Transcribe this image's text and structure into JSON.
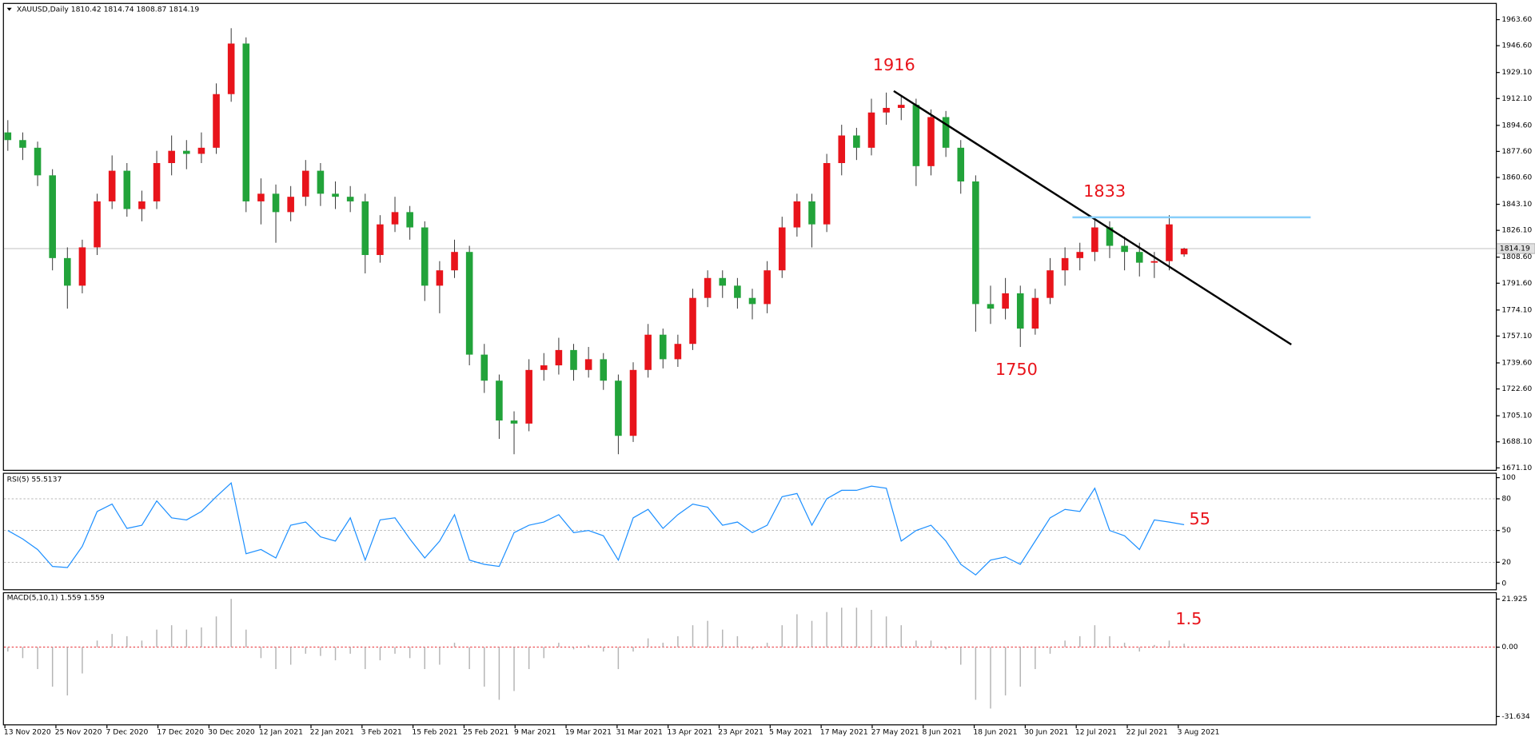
{
  "chart_data": {
    "type": "candlestick",
    "title": "XAUUSD,Daily  1810.42 1814.74 1808.87 1814.19",
    "up_color": "#e8141b",
    "down_color": "#22a33a",
    "candles": [
      [
        1890,
        1898,
        1878,
        1885
      ],
      [
        1885,
        1890,
        1872,
        1880
      ],
      [
        1880,
        1884,
        1855,
        1862
      ],
      [
        1862,
        1866,
        1800,
        1808
      ],
      [
        1808,
        1815,
        1775,
        1790
      ],
      [
        1790,
        1820,
        1785,
        1815
      ],
      [
        1815,
        1850,
        1810,
        1845
      ],
      [
        1845,
        1875,
        1840,
        1865
      ],
      [
        1865,
        1870,
        1835,
        1840
      ],
      [
        1840,
        1852,
        1832,
        1845
      ],
      [
        1845,
        1878,
        1840,
        1870
      ],
      [
        1870,
        1888,
        1862,
        1878
      ],
      [
        1878,
        1885,
        1866,
        1876
      ],
      [
        1876,
        1890,
        1870,
        1880
      ],
      [
        1880,
        1922,
        1876,
        1915
      ],
      [
        1915,
        1958,
        1910,
        1948
      ],
      [
        1948,
        1952,
        1838,
        1845
      ],
      [
        1845,
        1860,
        1830,
        1850
      ],
      [
        1850,
        1856,
        1818,
        1838
      ],
      [
        1838,
        1855,
        1832,
        1848
      ],
      [
        1848,
        1872,
        1842,
        1865
      ],
      [
        1865,
        1870,
        1842,
        1850
      ],
      [
        1850,
        1858,
        1840,
        1848
      ],
      [
        1848,
        1855,
        1838,
        1845
      ],
      [
        1845,
        1850,
        1798,
        1810
      ],
      [
        1810,
        1836,
        1805,
        1830
      ],
      [
        1830,
        1848,
        1825,
        1838
      ],
      [
        1838,
        1842,
        1820,
        1828
      ],
      [
        1828,
        1832,
        1780,
        1790
      ],
      [
        1790,
        1806,
        1772,
        1800
      ],
      [
        1800,
        1820,
        1795,
        1812
      ],
      [
        1812,
        1816,
        1738,
        1745
      ],
      [
        1745,
        1752,
        1720,
        1728
      ],
      [
        1728,
        1732,
        1690,
        1702
      ],
      [
        1702,
        1708,
        1680,
        1700
      ],
      [
        1700,
        1742,
        1695,
        1735
      ],
      [
        1735,
        1746,
        1728,
        1738
      ],
      [
        1738,
        1756,
        1732,
        1748
      ],
      [
        1748,
        1752,
        1728,
        1735
      ],
      [
        1735,
        1750,
        1730,
        1742
      ],
      [
        1742,
        1746,
        1722,
        1728
      ],
      [
        1728,
        1732,
        1680,
        1692
      ],
      [
        1692,
        1740,
        1688,
        1735
      ],
      [
        1735,
        1765,
        1730,
        1758
      ],
      [
        1758,
        1762,
        1736,
        1742
      ],
      [
        1742,
        1758,
        1737,
        1752
      ],
      [
        1752,
        1788,
        1748,
        1782
      ],
      [
        1782,
        1800,
        1776,
        1795
      ],
      [
        1795,
        1800,
        1782,
        1790
      ],
      [
        1790,
        1795,
        1775,
        1782
      ],
      [
        1782,
        1788,
        1768,
        1778
      ],
      [
        1778,
        1806,
        1772,
        1800
      ],
      [
        1800,
        1835,
        1795,
        1828
      ],
      [
        1828,
        1850,
        1822,
        1845
      ],
      [
        1845,
        1850,
        1815,
        1830
      ],
      [
        1830,
        1876,
        1825,
        1870
      ],
      [
        1870,
        1895,
        1862,
        1888
      ],
      [
        1888,
        1893,
        1872,
        1880
      ],
      [
        1880,
        1912,
        1875,
        1903
      ],
      [
        1903,
        1916,
        1895,
        1906
      ],
      [
        1906,
        1914,
        1898,
        1908
      ],
      [
        1908,
        1912,
        1855,
        1868
      ],
      [
        1868,
        1905,
        1862,
        1900
      ],
      [
        1900,
        1904,
        1874,
        1880
      ],
      [
        1880,
        1885,
        1850,
        1858
      ],
      [
        1858,
        1862,
        1760,
        1778
      ],
      [
        1778,
        1790,
        1765,
        1775
      ],
      [
        1775,
        1795,
        1768,
        1785
      ],
      [
        1785,
        1790,
        1750,
        1762
      ],
      [
        1762,
        1788,
        1758,
        1782
      ],
      [
        1782,
        1808,
        1778,
        1800
      ],
      [
        1800,
        1815,
        1790,
        1808
      ],
      [
        1808,
        1818,
        1800,
        1812
      ],
      [
        1812,
        1834,
        1806,
        1828
      ],
      [
        1828,
        1832,
        1808,
        1816
      ],
      [
        1816,
        1822,
        1800,
        1812
      ],
      [
        1812,
        1818,
        1796,
        1805
      ],
      [
        1805,
        1812,
        1795,
        1806
      ],
      [
        1806,
        1836,
        1800,
        1830
      ],
      [
        1810.42,
        1814.74,
        1808.87,
        1814.19
      ]
    ],
    "ylim": [
      1669.8,
      1974.5
    ],
    "yticks": [
      {
        "value": 1963.6,
        "label": "1963.60"
      },
      {
        "value": 1946.6,
        "label": "1946.60"
      },
      {
        "value": 1929.1,
        "label": "1929.10"
      },
      {
        "value": 1912.1,
        "label": "1912.10"
      },
      {
        "value": 1894.6,
        "label": "1894.60"
      },
      {
        "value": 1877.6,
        "label": "1877.60"
      },
      {
        "value": 1860.6,
        "label": "1860.60"
      },
      {
        "value": 1843.1,
        "label": "1843.10"
      },
      {
        "value": 1826.1,
        "label": "1826.10"
      },
      {
        "value": 1808.6,
        "label": "1808.60"
      },
      {
        "value": 1791.6,
        "label": "1791.60"
      },
      {
        "value": 1774.1,
        "label": "1774.10"
      },
      {
        "value": 1757.1,
        "label": "1757.10"
      },
      {
        "value": 1739.6,
        "label": "1739.60"
      },
      {
        "value": 1722.6,
        "label": "1722.60"
      },
      {
        "value": 1705.1,
        "label": "1705.10"
      },
      {
        "value": 1688.1,
        "label": "1688.10"
      },
      {
        "value": 1671.1,
        "label": "1671.10"
      }
    ],
    "current_price": 1814.19,
    "lines": [
      {
        "x": [
          59.5,
          86.2
        ],
        "y": [
          1917,
          1751.6
        ],
        "color": "#000000"
      },
      {
        "x": [
          71.5,
          87.5
        ],
        "y": [
          1834.6,
          1834.6
        ],
        "color": "#87cefa"
      }
    ],
    "annotations": [
      "1916",
      "1833",
      "1750",
      "55",
      "1.5"
    ],
    "date_labels": [
      "13 Nov 2020",
      "25 Nov 2020",
      "7 Dec 2020",
      "17 Dec 2020",
      "30 Dec 2020",
      "12 Jan 2021",
      "22 Jan 2021",
      "3 Feb 2021",
      "15 Feb 2021",
      "25 Feb 2021",
      "9 Mar 2021",
      "19 Mar 2021",
      "31 Mar 2021",
      "13 Apr 2021",
      "23 Apr 2021",
      "5 May 2021",
      "17 May 2021",
      "27 May 2021",
      "8 Jun 2021",
      "18 Jun 2021",
      "30 Jun 2021",
      "12 Jul 2021",
      "22 Jul 2021",
      "3 Aug 2021"
    ],
    "rsi": {
      "title": "RSI(5) 55.5137",
      "color": "#1e90ff",
      "ylim": [
        -5.6,
        104.6
      ],
      "yticks": [
        100,
        80,
        50,
        20,
        0
      ],
      "levels": [
        80,
        50,
        20
      ],
      "values": [
        50,
        42,
        32,
        16,
        15,
        35,
        68,
        75,
        52,
        55,
        78,
        62,
        60,
        68,
        82,
        95,
        28,
        32,
        24,
        55,
        58,
        44,
        40,
        62,
        22,
        60,
        62,
        42,
        24,
        40,
        65,
        22,
        18,
        16,
        48,
        55,
        58,
        65,
        48,
        50,
        45,
        22,
        62,
        70,
        52,
        65,
        75,
        72,
        55,
        58,
        48,
        55,
        82,
        85,
        55,
        80,
        88,
        88,
        92,
        90,
        40,
        50,
        55,
        40,
        18,
        8,
        22,
        25,
        18,
        40,
        62,
        70,
        68,
        90,
        50,
        45,
        32,
        60,
        58,
        55.5137
      ]
    },
    "macd": {
      "title": "MACD(5,10,1) 1.559 1.559",
      "color": "#b4b4b4",
      "ylim": [
        -35.2,
        25.05
      ],
      "yticks": [
        21.925,
        {
          "value": 0,
          "label": "0.00"
        },
        -31.634
      ],
      "values": [
        -2,
        -5,
        -10,
        -18,
        -22,
        -12,
        3,
        6,
        5,
        3,
        8,
        10,
        8,
        9,
        14,
        22,
        8,
        -5,
        -10,
        -8,
        -3,
        -4,
        -6,
        -3,
        -10,
        -6,
        -3,
        -5,
        -10,
        -8,
        2,
        -10,
        -18,
        -24,
        -20,
        -10,
        -5,
        2,
        -1,
        1,
        -2,
        -10,
        -2,
        4,
        2,
        5,
        10,
        12,
        8,
        5,
        -1,
        2,
        10,
        15,
        12,
        16,
        18,
        18,
        17,
        14,
        10,
        3,
        3,
        -1,
        -8,
        -24,
        -28,
        -22,
        -18,
        -10,
        -3,
        3,
        5,
        10,
        5,
        2,
        -2,
        1,
        3,
        1.559
      ]
    }
  }
}
